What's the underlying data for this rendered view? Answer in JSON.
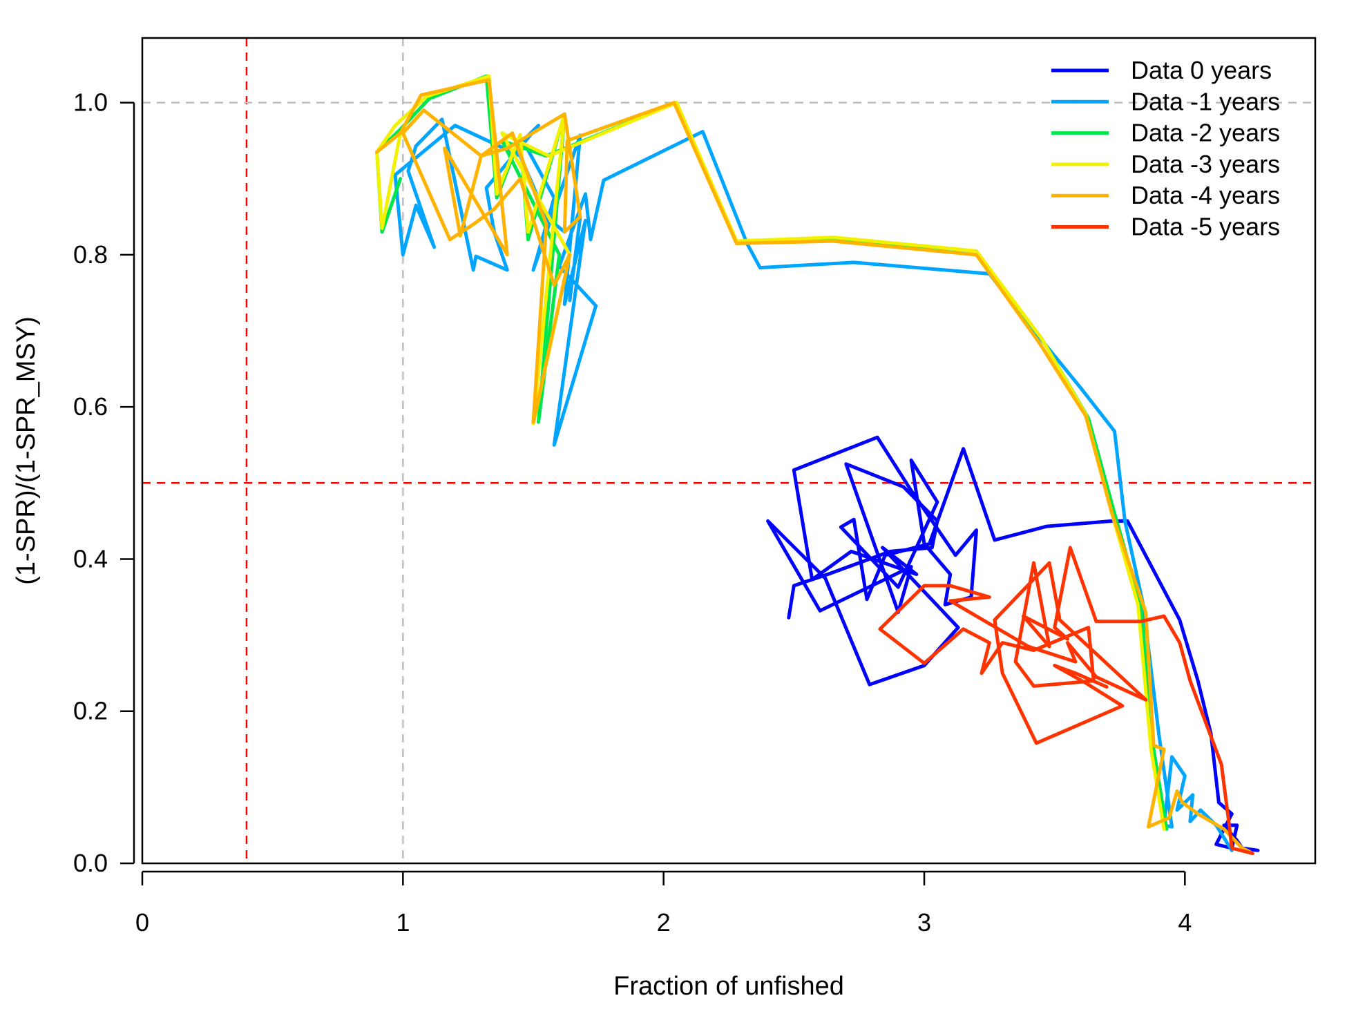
{
  "chart_data": {
    "type": "line",
    "xlabel": "Fraction of unfished",
    "ylabel": "(1-SPR)/(1-SPR_MSY)",
    "xlim": [
      0,
      4.5
    ],
    "ylim": [
      0,
      1.085
    ],
    "x_ticks": [
      0,
      1,
      2,
      3,
      4
    ],
    "x_tick_labels": [
      "0",
      "1",
      "2",
      "3",
      "4"
    ],
    "y_ticks": [
      0.0,
      0.2,
      0.4,
      0.6,
      0.8,
      1.0
    ],
    "y_tick_labels": [
      "0.0",
      "0.2",
      "0.4",
      "0.6",
      "0.8",
      "1.0"
    ],
    "grid": false,
    "legend_position": "top-right",
    "reference_lines": [
      {
        "orientation": "vertical",
        "value": 0.4,
        "color": "#ff0000",
        "style": "dashed"
      },
      {
        "orientation": "vertical",
        "value": 1.0,
        "color": "#bebebe",
        "style": "dashed"
      },
      {
        "orientation": "horizontal",
        "value": 0.5,
        "color": "#ff0000",
        "style": "dashed"
      },
      {
        "orientation": "horizontal",
        "value": 1.0,
        "color": "#bebebe",
        "style": "dashed"
      }
    ],
    "series": [
      {
        "name": "Data 0 years",
        "color": "#0000ff",
        "points": [
          [
            4.28,
            0.017
          ],
          [
            4.22,
            0.02
          ],
          [
            4.2,
            0.03
          ],
          [
            4.15,
            0.05
          ],
          [
            4.2,
            0.05
          ],
          [
            4.18,
            0.02
          ],
          [
            4.12,
            0.025
          ],
          [
            4.18,
            0.065
          ],
          [
            4.13,
            0.08
          ],
          [
            4.1,
            0.17
          ],
          [
            4.05,
            0.24
          ],
          [
            3.98,
            0.32
          ],
          [
            3.78,
            0.45
          ],
          [
            3.72,
            0.45
          ],
          [
            3.47,
            0.443
          ],
          [
            3.27,
            0.425
          ],
          [
            3.15,
            0.545
          ],
          [
            3.02,
            0.42
          ],
          [
            2.85,
            0.405
          ],
          [
            2.78,
            0.347
          ],
          [
            2.73,
            0.452
          ],
          [
            2.68,
            0.442
          ],
          [
            2.9,
            0.363
          ],
          [
            3.05,
            0.475
          ],
          [
            2.95,
            0.53
          ],
          [
            3.0,
            0.42
          ],
          [
            3.1,
            0.38
          ],
          [
            3.08,
            0.34
          ],
          [
            3.18,
            0.35
          ],
          [
            3.2,
            0.438
          ],
          [
            3.12,
            0.405
          ],
          [
            2.98,
            0.475
          ],
          [
            2.95,
            0.49
          ],
          [
            2.82,
            0.56
          ],
          [
            2.5,
            0.517
          ],
          [
            2.57,
            0.373
          ],
          [
            2.72,
            0.41
          ],
          [
            2.97,
            0.38
          ],
          [
            2.84,
            0.415
          ],
          [
            3.13,
            0.31
          ],
          [
            3.0,
            0.26
          ],
          [
            2.79,
            0.235
          ],
          [
            2.62,
            0.375
          ],
          [
            2.4,
            0.45
          ],
          [
            2.6,
            0.332
          ],
          [
            2.95,
            0.39
          ],
          [
            2.9,
            0.33
          ],
          [
            2.7,
            0.525
          ],
          [
            2.92,
            0.495
          ],
          [
            3.05,
            0.45
          ],
          [
            3.03,
            0.415
          ],
          [
            2.87,
            0.41
          ],
          [
            2.63,
            0.38
          ],
          [
            2.5,
            0.365
          ],
          [
            2.48,
            0.323
          ]
        ]
      },
      {
        "name": "Data -1 years",
        "color": "#00a5ff",
        "points": [
          [
            4.18,
            0.017
          ],
          [
            4.12,
            0.05
          ],
          [
            4.06,
            0.07
          ],
          [
            4.02,
            0.055
          ],
          [
            4.03,
            0.09
          ],
          [
            3.97,
            0.07
          ],
          [
            4.0,
            0.115
          ],
          [
            3.95,
            0.14
          ],
          [
            3.92,
            0.05
          ],
          [
            3.95,
            0.048
          ],
          [
            3.9,
            0.17
          ],
          [
            3.84,
            0.34
          ],
          [
            3.77,
            0.45
          ],
          [
            3.73,
            0.568
          ],
          [
            3.6,
            0.625
          ],
          [
            3.35,
            0.73
          ],
          [
            3.25,
            0.775
          ],
          [
            2.73,
            0.79
          ],
          [
            2.37,
            0.783
          ],
          [
            2.32,
            0.815
          ],
          [
            2.15,
            0.962
          ],
          [
            1.77,
            0.898
          ],
          [
            1.72,
            0.82
          ],
          [
            1.7,
            0.88
          ],
          [
            1.6,
            0.785
          ],
          [
            1.74,
            0.733
          ],
          [
            1.58,
            0.55
          ],
          [
            1.7,
            0.845
          ],
          [
            1.62,
            0.735
          ],
          [
            1.68,
            0.957
          ],
          [
            1.5,
            0.78
          ],
          [
            1.58,
            0.875
          ],
          [
            1.46,
            0.95
          ],
          [
            1.52,
            0.97
          ],
          [
            1.32,
            0.888
          ],
          [
            1.35,
            0.83
          ],
          [
            1.4,
            0.78
          ],
          [
            1.28,
            0.798
          ],
          [
            1.27,
            0.78
          ],
          [
            1.15,
            0.978
          ],
          [
            1.05,
            0.943
          ],
          [
            1.02,
            0.91
          ],
          [
            1.12,
            0.81
          ],
          [
            1.05,
            0.865
          ],
          [
            1.0,
            0.8
          ],
          [
            0.97,
            0.905
          ],
          [
            1.2,
            0.97
          ],
          [
            1.45,
            0.93
          ],
          [
            1.55,
            0.85
          ],
          [
            1.62,
            0.83
          ],
          [
            1.68,
            0.85
          ],
          [
            1.64,
            0.74
          ]
        ]
      },
      {
        "name": "Data -2 years",
        "color": "#00e64d",
        "points": [
          [
            0.99,
            0.9
          ],
          [
            0.92,
            0.83
          ],
          [
            0.9,
            0.935
          ],
          [
            0.99,
            0.965
          ],
          [
            1.1,
            1.005
          ],
          [
            1.32,
            1.035
          ],
          [
            1.36,
            0.875
          ],
          [
            1.45,
            0.955
          ],
          [
            1.48,
            0.82
          ],
          [
            1.62,
            0.985
          ],
          [
            1.52,
            0.58
          ],
          [
            1.6,
            0.8
          ],
          [
            1.38,
            0.95
          ],
          [
            1.55,
            0.93
          ],
          [
            2.05,
            1.0
          ],
          [
            2.28,
            0.815
          ],
          [
            2.65,
            0.82
          ],
          [
            3.2,
            0.8
          ],
          [
            3.45,
            0.69
          ],
          [
            3.63,
            0.585
          ],
          [
            3.73,
            0.46
          ],
          [
            3.83,
            0.34
          ],
          [
            3.88,
            0.15
          ],
          [
            3.93,
            0.045
          ]
        ]
      },
      {
        "name": "Data -3 years",
        "color": "#f2f200",
        "points": [
          [
            0.99,
            0.96
          ],
          [
            0.92,
            0.835
          ],
          [
            0.9,
            0.935
          ],
          [
            0.97,
            0.97
          ],
          [
            1.09,
            1.008
          ],
          [
            1.33,
            1.035
          ],
          [
            1.36,
            0.88
          ],
          [
            1.45,
            0.958
          ],
          [
            1.48,
            0.83
          ],
          [
            1.62,
            0.985
          ],
          [
            1.5,
            0.578
          ],
          [
            1.64,
            0.8
          ],
          [
            1.38,
            0.96
          ],
          [
            1.56,
            0.93
          ],
          [
            2.05,
            1.0
          ],
          [
            2.28,
            0.818
          ],
          [
            2.65,
            0.823
          ],
          [
            3.2,
            0.805
          ],
          [
            3.45,
            0.69
          ],
          [
            3.62,
            0.59
          ],
          [
            3.72,
            0.46
          ],
          [
            3.82,
            0.34
          ],
          [
            3.87,
            0.15
          ],
          [
            3.92,
            0.045
          ]
        ]
      },
      {
        "name": "Data -4 years",
        "color": "#ffb300",
        "points": [
          [
            0.9,
            0.935
          ],
          [
            0.99,
            0.96
          ],
          [
            1.07,
            1.01
          ],
          [
            1.33,
            1.03
          ],
          [
            1.4,
            0.8
          ],
          [
            1.16,
            0.94
          ],
          [
            1.22,
            0.825
          ],
          [
            1.3,
            0.93
          ],
          [
            1.42,
            0.96
          ],
          [
            1.55,
            0.84
          ],
          [
            1.5,
            0.58
          ],
          [
            1.64,
            0.8
          ],
          [
            1.58,
            0.76
          ],
          [
            1.45,
            0.9
          ],
          [
            1.35,
            0.86
          ],
          [
            1.27,
            0.84
          ],
          [
            1.18,
            0.82
          ],
          [
            1.0,
            0.96
          ],
          [
            1.08,
            0.99
          ],
          [
            1.3,
            0.93
          ],
          [
            1.4,
            0.94
          ],
          [
            1.62,
            0.985
          ],
          [
            1.68,
            0.85
          ],
          [
            1.62,
            0.83
          ],
          [
            1.63,
            0.95
          ],
          [
            2.04,
            1.0
          ],
          [
            2.28,
            0.815
          ],
          [
            2.65,
            0.818
          ],
          [
            3.2,
            0.8
          ],
          [
            3.44,
            0.685
          ],
          [
            3.62,
            0.588
          ],
          [
            3.72,
            0.46
          ],
          [
            3.85,
            0.33
          ],
          [
            3.88,
            0.155
          ],
          [
            3.92,
            0.15
          ],
          [
            3.86,
            0.048
          ],
          [
            3.94,
            0.06
          ],
          [
            3.97,
            0.095
          ],
          [
            3.99,
            0.08
          ],
          [
            4.05,
            0.065
          ],
          [
            4.15,
            0.045
          ],
          [
            4.22,
            0.02
          ],
          [
            4.25,
            0.015
          ]
        ]
      },
      {
        "name": "Data -5 years",
        "color": "#ff3300",
        "points": [
          [
            4.26,
            0.013
          ],
          [
            4.18,
            0.02
          ],
          [
            4.17,
            0.05
          ],
          [
            4.14,
            0.13
          ],
          [
            4.02,
            0.24
          ],
          [
            3.98,
            0.29
          ],
          [
            3.92,
            0.325
          ],
          [
            3.83,
            0.318
          ],
          [
            3.66,
            0.318
          ],
          [
            3.56,
            0.415
          ],
          [
            3.5,
            0.31
          ],
          [
            3.55,
            0.295
          ],
          [
            3.38,
            0.325
          ],
          [
            3.48,
            0.285
          ],
          [
            3.42,
            0.395
          ],
          [
            3.35,
            0.265
          ],
          [
            3.42,
            0.233
          ],
          [
            3.65,
            0.24
          ],
          [
            3.63,
            0.31
          ],
          [
            3.42,
            0.28
          ],
          [
            3.3,
            0.29
          ],
          [
            3.22,
            0.25
          ],
          [
            3.25,
            0.29
          ],
          [
            3.15,
            0.308
          ],
          [
            3.0,
            0.263
          ],
          [
            2.83,
            0.308
          ],
          [
            3.0,
            0.365
          ],
          [
            3.1,
            0.365
          ],
          [
            3.25,
            0.35
          ],
          [
            3.1,
            0.345
          ],
          [
            3.4,
            0.285
          ],
          [
            3.58,
            0.265
          ],
          [
            3.55,
            0.29
          ],
          [
            3.66,
            0.245
          ],
          [
            3.85,
            0.215
          ],
          [
            3.52,
            0.32
          ],
          [
            3.48,
            0.395
          ],
          [
            3.27,
            0.32
          ],
          [
            3.3,
            0.25
          ],
          [
            3.43,
            0.158
          ],
          [
            3.76,
            0.207
          ],
          [
            3.62,
            0.237
          ],
          [
            3.5,
            0.26
          ],
          [
            3.58,
            0.25
          ],
          [
            3.7,
            0.232
          ]
        ]
      }
    ]
  }
}
